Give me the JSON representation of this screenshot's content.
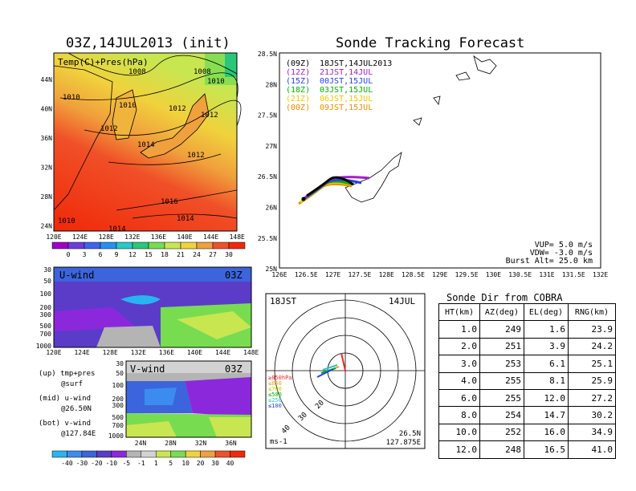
{
  "left": {
    "title": "03Z,14JUL2013 (init)",
    "map_label": "Temp(C)+Pres(hPa)",
    "lat_ticks": [
      "44N",
      "40N",
      "36N",
      "32N",
      "28N",
      "24N"
    ],
    "lon_ticks": [
      "120E",
      "124E",
      "128E",
      "132E",
      "136E",
      "140E",
      "144E",
      "148E"
    ],
    "isobars": [
      "1008",
      "1008",
      "1010",
      "1010",
      "1010",
      "1012",
      "1012",
      "1012",
      "1014",
      "1012",
      "1016",
      "1014",
      "1010",
      "1014"
    ],
    "temp_colorbar": [
      "0",
      "3",
      "6",
      "9",
      "12",
      "15",
      "18",
      "21",
      "24",
      "27",
      "30"
    ],
    "temp_colors": [
      "#a000c8",
      "#6e3cdc",
      "#3c64f0",
      "#2890f0",
      "#28c8c8",
      "#28c878",
      "#78dc50",
      "#c8e650",
      "#f0d23c",
      "#f0a03c",
      "#f05028",
      "#f0280a"
    ],
    "uwind_label": "U-wind",
    "uwind_time": "03Z",
    "vwind_label": "V-wind",
    "vwind_time": "03Z",
    "p_ticks": [
      "30",
      "50",
      "100",
      "200",
      "300",
      "500",
      "700",
      "1000"
    ],
    "uwind_lon_ticks": [
      "120E",
      "124E",
      "128E",
      "132E",
      "136E",
      "140E",
      "144E",
      "148E"
    ],
    "vwind_lat_ticks": [
      "24N",
      "28N",
      "32N",
      "36N"
    ],
    "wind_colorbar": [
      "-40",
      "-30",
      "-20",
      "-10",
      "-5",
      "-1",
      "1",
      "5",
      "10",
      "20",
      "30",
      "40"
    ],
    "wind_colors": [
      "#28b4f0",
      "#3c8cf0",
      "#3c64dc",
      "#5a3cc8",
      "#8c28dc",
      "#b4b4b4",
      "#d2d2d2",
      "#c8e650",
      "#78dc50",
      "#f0d23c",
      "#f0a03c",
      "#f05028",
      "#f0280a"
    ],
    "legend": [
      "(up) tmp+pres",
      "@surf",
      "(mid) u-wind",
      "@26.50N",
      "(bot) v-wind",
      "@127.84E"
    ]
  },
  "track": {
    "title": "Sonde Tracking Forecast",
    "lat_ticks": [
      "28.5N",
      "28N",
      "27.5N",
      "27N",
      "26.5N",
      "26N",
      "25.5N",
      "25N"
    ],
    "lon_ticks": [
      "126E",
      "126.5E",
      "127E",
      "127.5E",
      "128E",
      "128.5E",
      "129E",
      "129.5E",
      "130E",
      "130.5E",
      "131E",
      "131.5E",
      "132E"
    ],
    "legend": [
      {
        "code": "(09Z)",
        "time": "18JST,14JUL2013",
        "color": "#000000"
      },
      {
        "code": "(12Z)",
        "time": "21JST,14JUL",
        "color": "#a020c8"
      },
      {
        "code": "(15Z)",
        "time": "00JST,15JUL",
        "color": "#2840f0"
      },
      {
        "code": "(18Z)",
        "time": "03JST,15JUL",
        "color": "#00b400"
      },
      {
        "code": "(21Z)",
        "time": "06JST,15JUL",
        "color": "#f0c800"
      },
      {
        "code": "(00Z)",
        "time": "09JST,15JUL",
        "color": "#f08c00"
      }
    ],
    "vup": "VUP= 5.0 m/s",
    "vdw": "VDW= -3.0 m/s",
    "burst": "Burst Alt= 25.0 km"
  },
  "chart_data": {
    "type": "table",
    "title": "Sonde Dir from COBRA",
    "columns": [
      "HT(km)",
      "AZ(deg)",
      "EL(deg)",
      "RNG(km)"
    ],
    "rows": [
      [
        "1.0",
        "249",
        "1.6",
        "23.9"
      ],
      [
        "2.0",
        "251",
        "3.9",
        "24.2"
      ],
      [
        "3.0",
        "253",
        "6.1",
        "25.1"
      ],
      [
        "4.0",
        "255",
        "8.1",
        "25.9"
      ],
      [
        "6.0",
        "255",
        "12.0",
        "27.2"
      ],
      [
        "8.0",
        "254",
        "14.7",
        "30.2"
      ],
      [
        "10.0",
        "252",
        "16.0",
        "34.9"
      ],
      [
        "12.0",
        "248",
        "16.5",
        "41.0"
      ]
    ]
  },
  "polar": {
    "time_left": "18JST",
    "time_right": "14JUL",
    "ring_labels": [
      "20",
      "30",
      "40"
    ],
    "levels": [
      {
        "label": "≥850hPa",
        "color": "#f02828"
      },
      {
        "label": "≤850",
        "color": "#f0a000"
      },
      {
        "label": "≤700",
        "color": "#c8c800"
      },
      {
        "label": "≤500",
        "color": "#00b400"
      },
      {
        "label": "≤250",
        "color": "#28c8c8"
      },
      {
        "label": "≤100",
        "color": "#2840f0"
      }
    ],
    "unit": "ms-1",
    "pos_lat": "26.5N",
    "pos_lon": "127.875E"
  }
}
